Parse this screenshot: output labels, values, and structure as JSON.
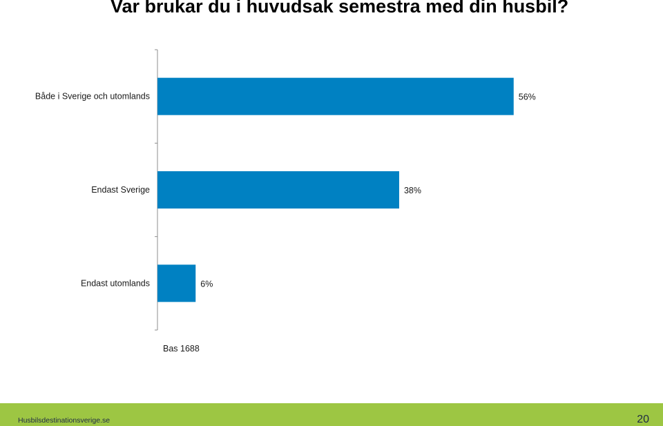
{
  "title": "Var brukar du i huvudsak semestra med din husbil?",
  "chart_data": {
    "type": "bar",
    "orientation": "horizontal",
    "categories": [
      "Både i Sverige och utomlands",
      "Endast Sverige",
      "Endast utomlands"
    ],
    "values": [
      56,
      38,
      6
    ],
    "value_labels": [
      "56%",
      "38%",
      "6%"
    ],
    "unit": "%",
    "xlim": [
      0,
      60
    ],
    "grid": false,
    "bar_color": "#0081c2",
    "note": "Bas 1688"
  },
  "footer": {
    "site": "Husbilsdestinationsverige.se",
    "page": "20",
    "color": "#9dc643"
  }
}
